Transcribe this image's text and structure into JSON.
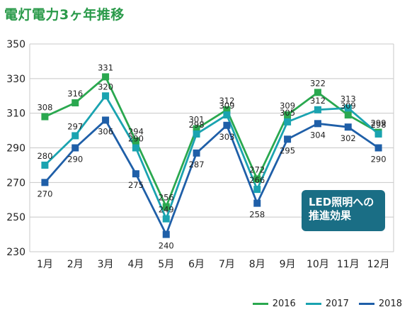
{
  "chart_data": {
    "type": "line",
    "title": "電灯電力3ヶ年推移",
    "categories": [
      "1月",
      "2月",
      "3月",
      "4月",
      "5月",
      "6月",
      "7月",
      "8月",
      "9月",
      "10月",
      "11月",
      "12月"
    ],
    "ylim": [
      230,
      350
    ],
    "yticks": [
      230,
      250,
      270,
      290,
      310,
      330,
      350
    ],
    "grid": true,
    "legend": "bottom-right",
    "series": [
      {
        "name": "2016",
        "color": "#2aa84f",
        "values": [
          308,
          316,
          331,
          294,
          256,
          301,
          312,
          272,
          309,
          322,
          309,
          299
        ]
      },
      {
        "name": "2017",
        "color": "#1aa3b0",
        "values": [
          280,
          297,
          320,
          290,
          249,
          298,
          309,
          266,
          305,
          312,
          313,
          298
        ]
      },
      {
        "name": "2018",
        "color": "#1f5fa8",
        "values": [
          270,
          290,
          306,
          275,
          240,
          287,
          303,
          258,
          295,
          304,
          302,
          290
        ]
      }
    ]
  },
  "callout": {
    "line1": "LED照明への",
    "line2": "推進効果"
  }
}
